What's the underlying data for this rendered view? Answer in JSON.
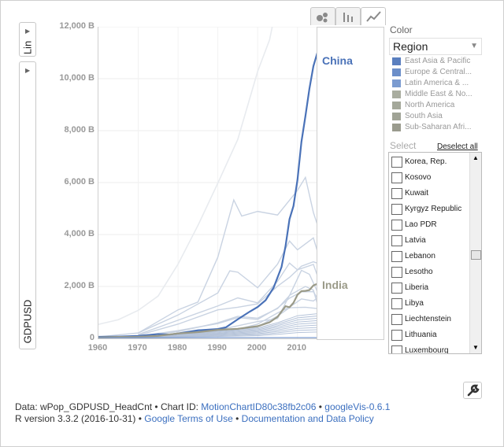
{
  "controls": {
    "scale_label": "Lin",
    "y_variable": "GDPUSD",
    "chart_types": [
      "bubble-chart-icon",
      "bar-chart-icon",
      "line-chart-icon"
    ]
  },
  "chart_data": {
    "type": "line",
    "xlim": [
      1960,
      2015
    ],
    "ylim": [
      0,
      12000
    ],
    "x_ticks": [
      "1960",
      "1970",
      "1980",
      "1990",
      "2000",
      "2010"
    ],
    "y_ticks": [
      "0",
      "2,000 B",
      "4,000 B",
      "6,000 B",
      "8,000 B",
      "10,000 B",
      "12,000 B"
    ],
    "grid": true,
    "highlighted": [
      {
        "name": "China",
        "color": "#4a72b8",
        "x": [
          1960,
          1965,
          1970,
          1975,
          1978,
          1980,
          1985,
          1990,
          1992,
          1995,
          1998,
          2000,
          2002,
          2004,
          2006,
          2007,
          2008,
          2009,
          2010,
          2011,
          2012,
          2013,
          2014,
          2015
        ],
        "y": [
          60,
          70,
          95,
          165,
          150,
          190,
          310,
          360,
          425,
          735,
          1030,
          1210,
          1470,
          1950,
          2750,
          3550,
          4590,
          5100,
          6100,
          7570,
          8560,
          9610,
          10480,
          11000
        ]
      },
      {
        "name": "India",
        "color": "#9a9a88",
        "x": [
          1960,
          1965,
          1970,
          1975,
          1980,
          1985,
          1990,
          1995,
          2000,
          2003,
          2005,
          2007,
          2008,
          2009,
          2010,
          2011,
          2012,
          2013,
          2014,
          2015
        ],
        "y": [
          37,
          59,
          62,
          98,
          190,
          240,
          330,
          370,
          470,
          620,
          830,
          1240,
          1200,
          1370,
          1680,
          1820,
          1830,
          1860,
          2040,
          2100
        ]
      }
    ]
  },
  "color_panel": {
    "title": "Color",
    "selected": "Region",
    "legend": [
      {
        "label": "East Asia & Pacific",
        "color": "#5a7fbf"
      },
      {
        "label": "Europe & Central...",
        "color": "#6b8ec9"
      },
      {
        "label": "Latin America & ...",
        "color": "#7b9bd0"
      },
      {
        "label": "Middle East & No...",
        "color": "#a9ad9f"
      },
      {
        "label": "North America",
        "color": "#a4a89a"
      },
      {
        "label": "South Asia",
        "color": "#a0a396"
      },
      {
        "label": "Sub-Saharan Afri...",
        "color": "#9a9b8e"
      }
    ]
  },
  "select_panel": {
    "title": "Select",
    "deselect_label": "Deselect all",
    "items": [
      "Korea, Rep.",
      "Kosovo",
      "Kuwait",
      "Kyrgyz Republic",
      "Lao PDR",
      "Latvia",
      "Lebanon",
      "Lesotho",
      "Liberia",
      "Libya",
      "Liechtenstein",
      "Lithuania",
      "Luxembourg"
    ]
  },
  "footer": {
    "line1_prefix": "Data: wPop_GDPUSD_HeadCnt • Chart ID: ",
    "chart_id": "MotionChartID80c38fb2c06",
    "sep1": " • ",
    "version": "googleVis-0.6.1",
    "line2_prefix": "R version 3.3.2 (2016-10-31) • ",
    "terms": "Google Terms of Use",
    "sep2": " • ",
    "policy": "Documentation and Data Policy"
  }
}
